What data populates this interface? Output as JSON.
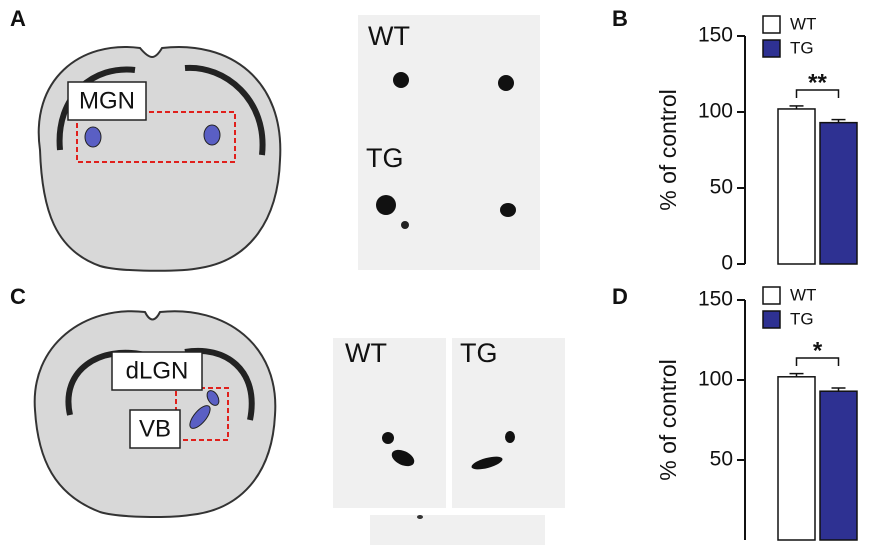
{
  "figure": {
    "panel_labels": [
      "A",
      "B",
      "C",
      "D"
    ],
    "panel_a": {
      "region_label": "MGN",
      "image_labels": [
        "WT",
        "TG"
      ]
    },
    "panel_c": {
      "region_labels": [
        "dLGN",
        "VB"
      ],
      "image_labels": [
        "WT",
        "TG"
      ]
    }
  },
  "chart_data": [
    {
      "type": "bar",
      "ylabel": "% of control",
      "ylim": [
        0,
        150
      ],
      "yticks": [
        0,
        50,
        100,
        150
      ],
      "series": [
        {
          "name": "WT",
          "color": "#ffffff",
          "values": [
            102
          ],
          "errors": [
            2
          ]
        },
        {
          "name": "TG",
          "color": "#2e3192",
          "values": [
            93
          ],
          "errors": [
            2
          ]
        }
      ],
      "annotation": "**"
    },
    {
      "type": "bar",
      "ylabel": "% of control",
      "ylim": [
        0,
        150
      ],
      "yticks": [
        50,
        100,
        150
      ],
      "series": [
        {
          "name": "WT",
          "color": "#ffffff",
          "values": [
            102
          ],
          "errors": [
            2
          ]
        },
        {
          "name": "TG",
          "color": "#2e3192",
          "values": [
            93
          ],
          "errors": [
            2
          ]
        }
      ],
      "annotation": "*"
    }
  ]
}
